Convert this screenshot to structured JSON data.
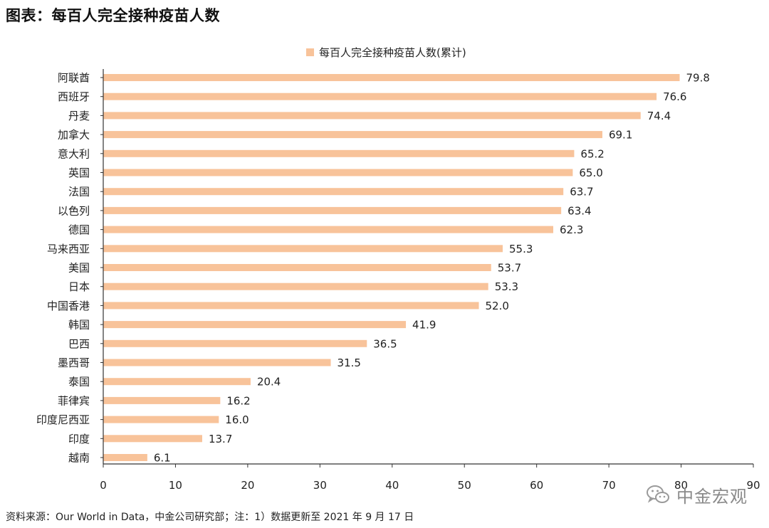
{
  "figure": {
    "title": "图表：每百人完全接种疫苗人数",
    "source_note": "资料来源：Our World in Data，中金公司研究部；注：1）数据更新至 2021 年 9 月 17 日",
    "watermark": "中金宏观",
    "watermark_icon": "wechat-icon"
  },
  "colors": {
    "bar": "#F8C39A",
    "axis": "#333333",
    "text": "#222222"
  },
  "chart_data": {
    "type": "bar",
    "orientation": "horizontal",
    "title": "图表：每百人完全接种疫苗人数",
    "xlabel": "",
    "ylabel": "",
    "xlim": [
      0,
      90
    ],
    "xticks": [
      0,
      10,
      20,
      30,
      40,
      50,
      60,
      70,
      80,
      90
    ],
    "grid": false,
    "legend_position": "top-center",
    "series": [
      {
        "name": "每百人完全接种疫苗人数(累计)",
        "values": [
          79.8,
          76.6,
          74.4,
          69.1,
          65.2,
          65.0,
          63.7,
          63.4,
          62.3,
          55.3,
          53.7,
          53.3,
          52.0,
          41.9,
          36.5,
          31.5,
          20.4,
          16.2,
          16.0,
          13.7,
          6.1
        ]
      }
    ],
    "categories": [
      "阿联酋",
      "西班牙",
      "丹麦",
      "加拿大",
      "意大利",
      "英国",
      "法国",
      "以色列",
      "德国",
      "马来西亚",
      "美国",
      "日本",
      "中国香港",
      "韩国",
      "巴西",
      "墨西哥",
      "泰国",
      "菲律宾",
      "印度尼西亚",
      "印度",
      "越南"
    ],
    "value_labels": [
      "79.8",
      "76.6",
      "74.4",
      "69.1",
      "65.2",
      "65.0",
      "63.7",
      "63.4",
      "62.3",
      "55.3",
      "53.7",
      "53.3",
      "52.0",
      "41.9",
      "36.5",
      "31.5",
      "20.4",
      "16.2",
      "16.0",
      "13.7",
      "6.1"
    ]
  }
}
